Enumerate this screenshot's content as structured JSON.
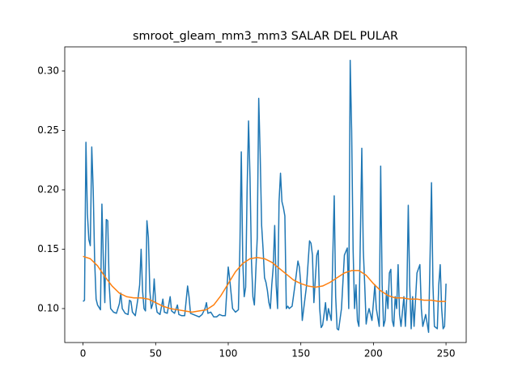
{
  "chart_data": {
    "type": "line",
    "title": "smroot_gleam_mm3_mm3 SALAR DEL PULAR",
    "xlim": [
      -12.6,
      263.9
    ],
    "xticks": [
      0,
      50,
      100,
      150,
      200,
      250
    ],
    "ylim": [
      0.0714,
      0.3204
    ],
    "yticks": [
      {
        "value": 0.1,
        "label": "0.10"
      },
      0.15,
      {
        "value": 0.2,
        "label": "0.20"
      },
      0.25,
      {
        "value": 0.3,
        "label": "0.30"
      }
    ],
    "series": [
      {
        "color": "#1f77b4",
        "x": [
          0,
          1,
          2,
          3,
          4,
          5,
          6,
          7,
          8,
          9,
          10,
          12,
          13,
          14,
          15,
          16,
          17,
          18,
          19,
          21,
          23,
          25,
          26,
          27,
          29,
          31,
          32,
          33,
          34,
          36,
          38,
          39,
          40,
          41,
          42,
          43,
          44,
          45,
          46,
          47,
          48,
          49,
          50,
          51,
          53,
          55,
          56,
          58,
          60,
          61,
          63,
          65,
          66,
          68,
          70,
          72,
          73,
          74,
          76,
          78,
          80,
          82,
          84,
          85,
          86,
          88,
          90,
          92,
          94,
          96,
          98,
          100,
          101,
          103,
          105,
          107,
          108,
          109,
          110,
          111,
          112,
          113,
          114,
          115,
          116,
          117,
          118,
          120,
          121,
          122,
          123,
          124,
          125,
          126,
          127,
          128,
          129,
          130,
          131,
          132,
          133,
          134,
          135,
          136,
          137,
          138,
          139,
          140,
          141,
          142,
          144,
          146,
          148,
          149,
          150,
          151,
          152,
          154,
          156,
          157,
          158,
          159,
          161,
          162,
          163,
          164,
          165,
          166,
          167,
          168,
          169,
          171,
          173,
          174,
          175,
          176,
          178,
          180,
          182,
          183,
          184,
          185,
          186,
          187,
          188,
          189,
          190,
          192,
          193,
          194,
          195,
          196,
          197,
          199,
          201,
          202,
          204,
          205,
          206,
          207,
          208,
          209,
          210,
          211,
          212,
          213,
          214,
          215,
          216,
          217,
          218,
          219,
          221,
          222,
          223,
          224,
          225,
          226,
          227,
          228,
          230,
          232,
          233,
          234,
          236,
          238,
          240,
          241,
          242,
          244,
          245,
          246,
          247,
          248,
          249,
          250
        ],
        "values": [
          0.106,
          0.107,
          0.24,
          0.18,
          0.158,
          0.153,
          0.236,
          0.2,
          0.14,
          0.108,
          0.103,
          0.099,
          0.188,
          0.14,
          0.105,
          0.175,
          0.174,
          0.12,
          0.1,
          0.097,
          0.096,
          0.104,
          0.113,
          0.1,
          0.096,
          0.095,
          0.107,
          0.106,
          0.097,
          0.094,
          0.11,
          0.12,
          0.15,
          0.115,
          0.1,
          0.098,
          0.174,
          0.16,
          0.115,
          0.1,
          0.104,
          0.125,
          0.105,
          0.097,
          0.095,
          0.108,
          0.097,
          0.096,
          0.11,
          0.098,
          0.096,
          0.103,
          0.095,
          0.094,
          0.094,
          0.119,
          0.11,
          0.096,
          0.095,
          0.094,
          0.093,
          0.095,
          0.1,
          0.105,
          0.096,
          0.097,
          0.093,
          0.093,
          0.095,
          0.094,
          0.094,
          0.135,
          0.125,
          0.1,
          0.097,
          0.099,
          0.15,
          0.232,
          0.14,
          0.11,
          0.118,
          0.2,
          0.258,
          0.21,
          0.14,
          0.11,
          0.103,
          0.16,
          0.277,
          0.23,
          0.17,
          0.15,
          0.126,
          0.122,
          0.115,
          0.105,
          0.1,
          0.12,
          0.135,
          0.17,
          0.12,
          0.1,
          0.19,
          0.214,
          0.19,
          0.185,
          0.178,
          0.1,
          0.102,
          0.1,
          0.102,
          0.12,
          0.14,
          0.135,
          0.12,
          0.09,
          0.1,
          0.12,
          0.157,
          0.155,
          0.145,
          0.105,
          0.145,
          0.149,
          0.1,
          0.084,
          0.086,
          0.095,
          0.105,
          0.09,
          0.1,
          0.09,
          0.195,
          0.11,
          0.083,
          0.082,
          0.1,
          0.145,
          0.151,
          0.1,
          0.309,
          0.25,
          0.15,
          0.1,
          0.12,
          0.09,
          0.085,
          0.235,
          0.15,
          0.12,
          0.087,
          0.095,
          0.1,
          0.09,
          0.12,
          0.1,
          0.085,
          0.22,
          0.12,
          0.085,
          0.09,
          0.115,
          0.1,
          0.13,
          0.133,
          0.09,
          0.085,
          0.11,
          0.1,
          0.137,
          0.095,
          0.085,
          0.11,
          0.085,
          0.11,
          0.187,
          0.12,
          0.083,
          0.11,
          0.085,
          0.13,
          0.137,
          0.1,
          0.085,
          0.095,
          0.08,
          0.206,
          0.12,
          0.085,
          0.083,
          0.12,
          0.137,
          0.1,
          0.083,
          0.085,
          0.121
        ]
      },
      {
        "color": "#ff7f0e",
        "x": [
          0,
          5,
          10,
          15,
          20,
          25,
          30,
          35,
          40,
          45,
          50,
          55,
          60,
          65,
          70,
          75,
          80,
          85,
          90,
          95,
          100,
          105,
          110,
          115,
          120,
          125,
          130,
          135,
          140,
          145,
          150,
          155,
          160,
          165,
          170,
          175,
          180,
          185,
          190,
          195,
          200,
          205,
          210,
          215,
          220,
          225,
          230,
          235,
          240,
          245,
          250
        ],
        "values": [
          0.144,
          0.142,
          0.136,
          0.127,
          0.119,
          0.113,
          0.11,
          0.109,
          0.109,
          0.108,
          0.105,
          0.102,
          0.1,
          0.099,
          0.098,
          0.097,
          0.098,
          0.099,
          0.103,
          0.111,
          0.121,
          0.131,
          0.138,
          0.142,
          0.143,
          0.142,
          0.139,
          0.134,
          0.129,
          0.124,
          0.121,
          0.119,
          0.118,
          0.119,
          0.122,
          0.126,
          0.13,
          0.132,
          0.132,
          0.128,
          0.121,
          0.115,
          0.111,
          0.109,
          0.109,
          0.108,
          0.108,
          0.107,
          0.107,
          0.106,
          0.106
        ]
      }
    ]
  }
}
